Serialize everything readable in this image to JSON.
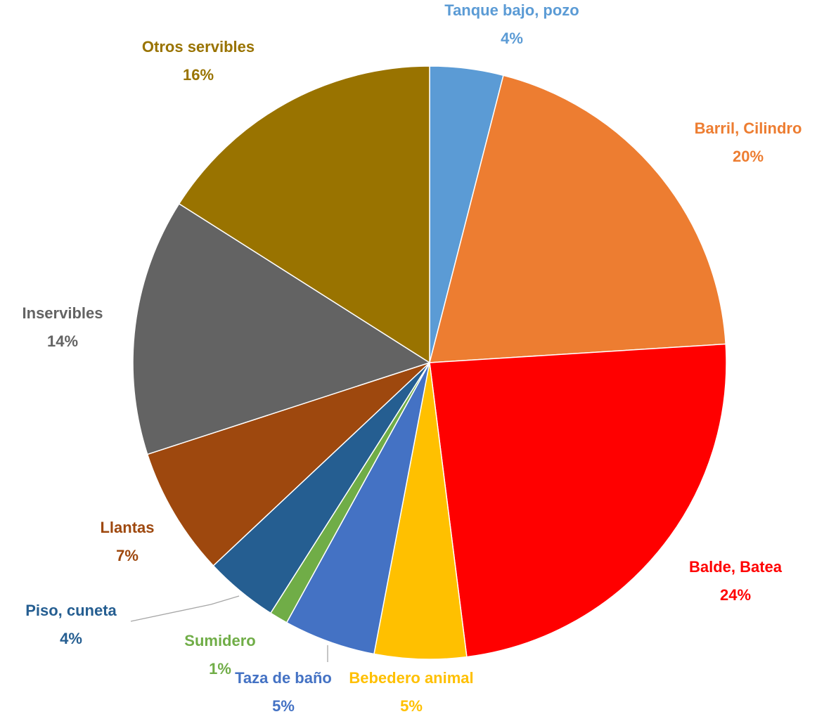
{
  "chart_data": {
    "type": "pie",
    "title": "",
    "slices": [
      {
        "label": "Tanque bajo, pozo",
        "value": 4,
        "value_label": "4%",
        "color": "#5b9bd5"
      },
      {
        "label": "Barril, Cilindro",
        "value": 20,
        "value_label": "20%",
        "color": "#ed7d31"
      },
      {
        "label": "Balde, Batea",
        "value": 24,
        "value_label": "24%",
        "color": "#ff0000"
      },
      {
        "label": "Bebedero animal",
        "value": 5,
        "value_label": "5%",
        "color": "#ffc000"
      },
      {
        "label": "Taza de baño",
        "value": 5,
        "value_label": "5%",
        "color": "#4472c4"
      },
      {
        "label": "Sumidero",
        "value": 1,
        "value_label": "1%",
        "color": "#70ad47"
      },
      {
        "label": "Piso, cuneta",
        "value": 4,
        "value_label": "4%",
        "color": "#255e91"
      },
      {
        "label": "Llantas",
        "value": 7,
        "value_label": "7%",
        "color": "#9e480e"
      },
      {
        "label": "Inservibles",
        "value": 14,
        "value_label": "14%",
        "color": "#636363"
      },
      {
        "label": "Otros servibles",
        "value": 16,
        "value_label": "16%",
        "color": "#997300"
      }
    ],
    "legend": "none",
    "data_labels": "outside, category name and percentage"
  }
}
